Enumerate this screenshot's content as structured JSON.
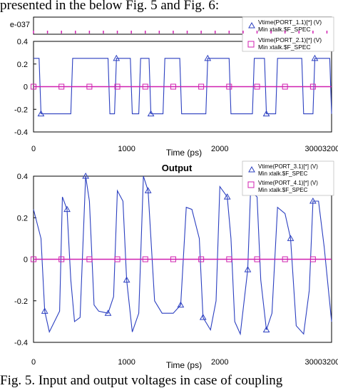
{
  "caption_top": "presented in the below Fig. 5 and Fig. 6:",
  "caption_bottom": "Fig. 5. Input and output voltages in case of coupling",
  "chart_data": [
    {
      "type": "line",
      "panel": "input",
      "title": "",
      "xlabel": "Time (ps)",
      "ylabel": "",
      "xlim": [
        0,
        3200
      ],
      "ylim": [
        -0.4,
        0.4
      ],
      "x_ticks": [
        "0",
        "1000",
        "2000",
        "30003200"
      ],
      "y_ticks": [
        "0.4",
        "0.2",
        "0",
        "-0.2",
        "-0.4"
      ],
      "top_strip_label": "e-037",
      "grid": false,
      "legend_position": "top-right",
      "legend": [
        {
          "line1": "Vtime(PORT_1.1)[*] (V)",
          "line2": "Min xtalk.$F_SPEC",
          "color": "#2b3fc0",
          "marker": "triangle"
        },
        {
          "line1": "Vtime(PORT_2.1)[*] (V)",
          "line2": "Min xtalk.$F_SPEC",
          "color": "#d020b0",
          "marker": "square"
        }
      ],
      "series": [
        {
          "color": "#2b3fc0",
          "points": [
            [
              0,
              0.25
            ],
            [
              60,
              0.25
            ],
            [
              80,
              -0.24
            ],
            [
              400,
              -0.24
            ],
            [
              420,
              0.25
            ],
            [
              800,
              0.25
            ],
            [
              820,
              -0.24
            ],
            [
              870,
              -0.24
            ],
            [
              890,
              0.25
            ],
            [
              1040,
              0.25
            ],
            [
              1060,
              -0.24
            ],
            [
              1130,
              -0.24
            ],
            [
              1150,
              0.25
            ],
            [
              1240,
              0.25
            ],
            [
              1260,
              -0.24
            ],
            [
              1390,
              -0.24
            ],
            [
              1410,
              0.25
            ],
            [
              1570,
              0.25
            ],
            [
              1590,
              -0.24
            ],
            [
              1850,
              -0.24
            ],
            [
              1870,
              0.25
            ],
            [
              2100,
              0.25
            ],
            [
              2120,
              -0.24
            ],
            [
              2350,
              -0.24
            ],
            [
              2370,
              0.25
            ],
            [
              2480,
              0.25
            ],
            [
              2500,
              -0.24
            ],
            [
              2600,
              -0.24
            ],
            [
              2620,
              0.25
            ],
            [
              2880,
              0.25
            ],
            [
              2900,
              -0.24
            ],
            [
              3000,
              -0.24
            ],
            [
              3020,
              0.25
            ],
            [
              3180,
              0.25
            ],
            [
              3200,
              -0.24
            ]
          ]
        },
        {
          "color": "#d020b0",
          "points": [
            [
              0,
              0
            ],
            [
              3200,
              0
            ]
          ]
        }
      ]
    },
    {
      "type": "line",
      "panel": "output",
      "title": "Output",
      "xlabel": "Time (ps)",
      "ylabel": "",
      "xlim": [
        0,
        3200
      ],
      "ylim": [
        -0.4,
        0.4
      ],
      "x_ticks": [
        "0",
        "1000",
        "2000",
        "30003200"
      ],
      "y_ticks": [
        "0.4",
        "0.2",
        "0",
        "-0.2",
        "-0.4"
      ],
      "grid": false,
      "legend_position": "top-right",
      "legend": [
        {
          "line1": "Vtime(PORT_3.1)[*] (V)",
          "line2": "Min xtalk.$F_SPEC",
          "color": "#2b3fc0",
          "marker": "triangle"
        },
        {
          "line1": "Vtime(PORT_4.1)[*] (V)",
          "line2": "Min xtalk.$F_SPEC",
          "color": "#d020b0",
          "marker": "square"
        }
      ],
      "series": [
        {
          "color": "#2b3fc0",
          "points": [
            [
              0,
              0.24
            ],
            [
              80,
              0.1
            ],
            [
              120,
              -0.25
            ],
            [
              170,
              -0.35
            ],
            [
              280,
              -0.25
            ],
            [
              310,
              0.3
            ],
            [
              360,
              0.24
            ],
            [
              400,
              -0.1
            ],
            [
              440,
              -0.3
            ],
            [
              500,
              -0.28
            ],
            [
              560,
              0.4
            ],
            [
              600,
              0.28
            ],
            [
              650,
              -0.22
            ],
            [
              700,
              -0.25
            ],
            [
              800,
              -0.26
            ],
            [
              860,
              -0.18
            ],
            [
              900,
              0.33
            ],
            [
              960,
              0.28
            ],
            [
              1000,
              -0.1
            ],
            [
              1060,
              -0.35
            ],
            [
              1130,
              -0.26
            ],
            [
              1180,
              0.4
            ],
            [
              1230,
              0.33
            ],
            [
              1300,
              -0.2
            ],
            [
              1380,
              -0.26
            ],
            [
              1500,
              -0.26
            ],
            [
              1580,
              -0.22
            ],
            [
              1640,
              0.25
            ],
            [
              1700,
              0.24
            ],
            [
              1780,
              0.1
            ],
            [
              1820,
              -0.28
            ],
            [
              1900,
              -0.34
            ],
            [
              1960,
              -0.2
            ],
            [
              2000,
              0.35
            ],
            [
              2080,
              0.3
            ],
            [
              2120,
              0.1
            ],
            [
              2160,
              -0.3
            ],
            [
              2220,
              -0.36
            ],
            [
              2300,
              -0.05
            ],
            [
              2330,
              0.33
            ],
            [
              2400,
              0.3
            ],
            [
              2440,
              -0.1
            ],
            [
              2500,
              -0.34
            ],
            [
              2560,
              -0.26
            ],
            [
              2620,
              0.25
            ],
            [
              2700,
              0.22
            ],
            [
              2760,
              0.1
            ],
            [
              2820,
              -0.32
            ],
            [
              2900,
              -0.36
            ],
            [
              2960,
              -0.15
            ],
            [
              3000,
              0.28
            ],
            [
              3060,
              0.28
            ],
            [
              3120,
              0.06
            ],
            [
              3200,
              -0.3
            ]
          ]
        },
        {
          "color": "#d020b0",
          "points": [
            [
              0,
              0
            ],
            [
              3200,
              0
            ]
          ]
        }
      ]
    }
  ]
}
